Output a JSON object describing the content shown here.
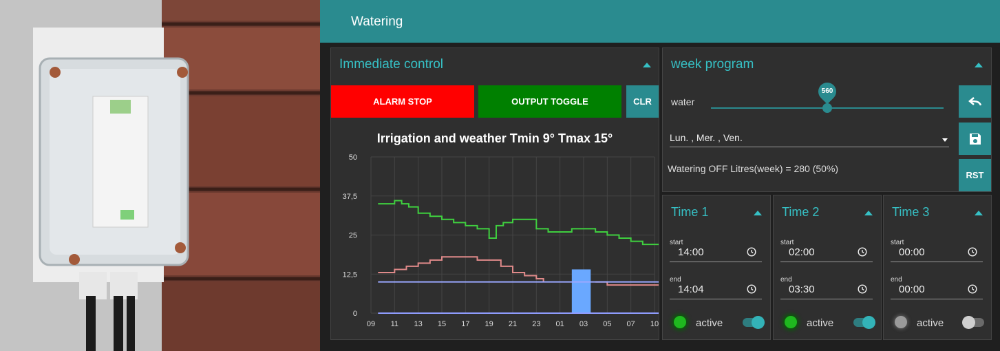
{
  "app": {
    "title": "Watering"
  },
  "immediate": {
    "title": "Immediate control",
    "alarm_stop": "ALARM STOP",
    "output_toggle": "OUTPUT TOGGLE",
    "clr": "CLR"
  },
  "week": {
    "title": "week program",
    "water_label": "water",
    "slider_value": "560",
    "slider_fraction": 0.5,
    "days": "Lun. , Mer. , Ven.",
    "status": "Watering OFF Litres(week) = 280 (50%)",
    "rst": "RST"
  },
  "times": [
    {
      "title": "Time 1",
      "start_label": "start",
      "start": "14:00",
      "end_label": "end",
      "end": "14:04",
      "active_label": "active",
      "led": "on",
      "toggle": true
    },
    {
      "title": "Time 2",
      "start_label": "start",
      "start": "02:00",
      "end_label": "end",
      "end": "03:30",
      "active_label": "active",
      "led": "on",
      "toggle": true
    },
    {
      "title": "Time 3",
      "start_label": "start",
      "start": "00:00",
      "end_label": "end",
      "end": "00:00",
      "active_label": "active",
      "led": "off",
      "toggle": false
    }
  ],
  "colors": {
    "accent": "#2a8b8f",
    "alarm": "#ff0000",
    "toggle_output": "#008000",
    "temp_max": "#3fd03f",
    "temp_min": "#e08a8a",
    "threshold": "#9aa8ff",
    "watering_bar": "#6aa8ff",
    "led_on": "#1fb81f"
  },
  "chart_data": {
    "type": "line",
    "title": "Irrigation and weather Tmin 9° Tmax 15°",
    "ylim": [
      0,
      50
    ],
    "y_ticks": [
      "50",
      "37,5",
      "25",
      "12,5",
      "0"
    ],
    "x_ticks": [
      "09",
      "11",
      "13",
      "15",
      "17",
      "19",
      "21",
      "23",
      "01",
      "03",
      "05",
      "07",
      "10"
    ],
    "series": [
      {
        "color": "#3fd03f",
        "x": [
          0.3,
          1,
          1.3,
          1.6,
          2,
          2.5,
          3,
          3.5,
          4,
          4.5,
          5,
          5.3,
          5.6,
          6,
          6.5,
          7,
          7.5,
          8,
          8.5,
          9,
          9.5,
          10,
          10.5,
          11,
          11.5,
          12,
          12.3
        ],
        "values": [
          35,
          36,
          35,
          34,
          32,
          31,
          30,
          29,
          28,
          27,
          24,
          28,
          29,
          30,
          30,
          27,
          26,
          26,
          27,
          27,
          26,
          25,
          24,
          23,
          22,
          22,
          21
        ]
      },
      {
        "color": "#e08a8a",
        "x": [
          0.3,
          1,
          1.5,
          2,
          2.5,
          3,
          3.5,
          4,
          4.5,
          5,
          5.5,
          6,
          6.5,
          7,
          7.3
        ],
        "values": [
          13,
          14,
          15,
          16,
          17,
          18,
          18,
          18,
          17,
          17,
          15,
          13,
          12,
          11,
          10
        ]
      },
      {
        "color": "#e08a8a",
        "x": [
          9.5,
          10,
          10.5,
          11,
          11.5,
          12,
          12.3
        ],
        "values": [
          10,
          9,
          9,
          9,
          9,
          9,
          9
        ]
      },
      {
        "color": "#9aa8ff",
        "x": [
          0.3,
          12.3
        ],
        "values": [
          10,
          10
        ]
      },
      {
        "color": "#8f9cff",
        "x": [
          0.3,
          12.3
        ],
        "values": [
          0,
          0
        ]
      }
    ],
    "bars": [
      {
        "x_start": 8.5,
        "x_end": 9.3,
        "value": 14,
        "color": "#6aa8ff"
      }
    ]
  }
}
